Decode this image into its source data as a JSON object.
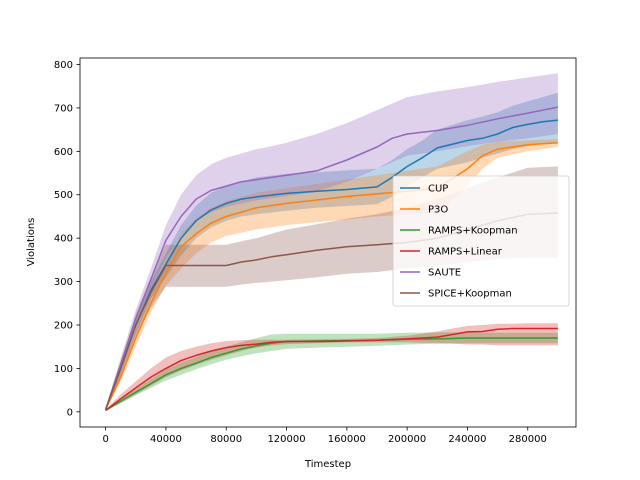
{
  "chart_data": {
    "type": "line",
    "title": "",
    "xlabel": "Timestep",
    "ylabel": "Violations",
    "xlim": [
      -17000,
      312000
    ],
    "ylim": [
      -35,
      815
    ],
    "xticks": [
      0,
      40000,
      80000,
      120000,
      160000,
      200000,
      240000,
      280000
    ],
    "xtick_labels": [
      "0",
      "40000",
      "80000",
      "120000",
      "160000",
      "200000",
      "240000",
      "280000"
    ],
    "yticks": [
      0,
      100,
      200,
      300,
      400,
      500,
      600,
      700,
      800
    ],
    "ytick_labels": [
      "0",
      "100",
      "200",
      "300",
      "400",
      "500",
      "600",
      "700",
      "800"
    ],
    "grid": false,
    "legend": "center-right",
    "series": [
      {
        "name": "CUP",
        "color": "#1f77b4",
        "x": [
          0,
          10000,
          20000,
          30000,
          40000,
          50000,
          60000,
          70000,
          80000,
          90000,
          100000,
          120000,
          140000,
          160000,
          180000,
          190000,
          200000,
          210000,
          220000,
          240000,
          250000,
          260000,
          270000,
          280000,
          290000,
          300000
        ],
        "y": [
          5,
          100,
          200,
          280,
          340,
          400,
          440,
          465,
          480,
          490,
          495,
          503,
          508,
          512,
          518,
          540,
          565,
          585,
          608,
          625,
          630,
          640,
          655,
          662,
          668,
          672
        ],
        "lower": [
          3,
          85,
          180,
          260,
          310,
          360,
          400,
          425,
          440,
          450,
          455,
          463,
          470,
          474,
          478,
          495,
          520,
          540,
          560,
          575,
          585,
          595,
          605,
          612,
          618,
          620
        ],
        "upper": [
          8,
          115,
          220,
          300,
          365,
          430,
          475,
          505,
          520,
          530,
          540,
          548,
          552,
          556,
          560,
          580,
          605,
          625,
          650,
          672,
          680,
          690,
          705,
          715,
          725,
          735
        ]
      },
      {
        "name": "P3O",
        "color": "#ff7f0e",
        "x": [
          0,
          10000,
          20000,
          30000,
          40000,
          50000,
          60000,
          70000,
          80000,
          100000,
          120000,
          140000,
          160000,
          180000,
          200000,
          220000,
          240000,
          250000,
          260000,
          280000,
          300000
        ],
        "y": [
          5,
          80,
          170,
          250,
          320,
          380,
          410,
          435,
          450,
          470,
          480,
          488,
          496,
          502,
          508,
          515,
          560,
          590,
          605,
          615,
          620
        ],
        "lower": [
          3,
          70,
          150,
          230,
          290,
          330,
          365,
          390,
          405,
          420,
          430,
          437,
          443,
          450,
          455,
          460,
          520,
          560,
          585,
          600,
          610
        ],
        "upper": [
          8,
          95,
          190,
          275,
          345,
          410,
          445,
          470,
          485,
          505,
          515,
          525,
          535,
          545,
          555,
          565,
          600,
          615,
          622,
          625,
          628
        ]
      },
      {
        "name": "RAMPS+Koopman",
        "color": "#2ca02c",
        "x": [
          0,
          10000,
          20000,
          30000,
          40000,
          50000,
          60000,
          70000,
          80000,
          90000,
          100000,
          110000,
          120000,
          140000,
          160000,
          180000,
          200000,
          220000,
          240000,
          260000,
          280000,
          300000
        ],
        "y": [
          3,
          25,
          45,
          65,
          85,
          100,
          112,
          125,
          135,
          145,
          152,
          158,
          162,
          163,
          164,
          165,
          167,
          168,
          170,
          170,
          170,
          170
        ],
        "lower": [
          2,
          20,
          38,
          55,
          72,
          85,
          98,
          110,
          120,
          128,
          135,
          140,
          145,
          148,
          150,
          152,
          155,
          157,
          158,
          158,
          158,
          158
        ],
        "upper": [
          5,
          30,
          52,
          75,
          98,
          113,
          126,
          140,
          150,
          160,
          170,
          178,
          180,
          180,
          180,
          180,
          182,
          183,
          183,
          182,
          182,
          182
        ]
      },
      {
        "name": "RAMPS+Linear",
        "color": "#d62728",
        "x": [
          0,
          10000,
          20000,
          30000,
          40000,
          50000,
          60000,
          70000,
          80000,
          90000,
          100000,
          110000,
          120000,
          140000,
          160000,
          180000,
          200000,
          220000,
          230000,
          240000,
          250000,
          260000,
          270000,
          280000,
          300000
        ],
        "y": [
          3,
          30,
          55,
          80,
          100,
          118,
          130,
          140,
          148,
          153,
          156,
          160,
          162,
          162,
          163,
          165,
          168,
          172,
          178,
          184,
          185,
          190,
          192,
          192,
          192
        ],
        "lower": [
          2,
          20,
          40,
          60,
          80,
          95,
          108,
          120,
          130,
          140,
          148,
          153,
          156,
          158,
          160,
          160,
          160,
          158,
          157,
          155,
          155,
          153,
          153,
          153,
          153
        ],
        "upper": [
          5,
          40,
          70,
          100,
          125,
          140,
          150,
          158,
          163,
          165,
          166,
          166,
          166,
          167,
          168,
          170,
          175,
          185,
          192,
          198,
          200,
          203,
          203,
          204,
          204
        ]
      },
      {
        "name": "SAUTE",
        "color": "#9467bd",
        "x": [
          0,
          10000,
          20000,
          30000,
          40000,
          50000,
          60000,
          70000,
          80000,
          90000,
          100000,
          110000,
          120000,
          140000,
          160000,
          180000,
          190000,
          200000,
          220000,
          240000,
          260000,
          280000,
          300000
        ],
        "y": [
          5,
          110,
          215,
          305,
          395,
          450,
          490,
          510,
          520,
          530,
          535,
          540,
          545,
          555,
          580,
          610,
          630,
          640,
          648,
          660,
          675,
          688,
          702
        ],
        "lower": [
          3,
          95,
          195,
          280,
          355,
          405,
          440,
          460,
          472,
          480,
          487,
          492,
          497,
          507,
          530,
          560,
          575,
          590,
          600,
          612,
          622,
          630,
          640
        ],
        "upper": [
          8,
          125,
          235,
          330,
          430,
          500,
          545,
          570,
          585,
          595,
          605,
          612,
          620,
          640,
          665,
          695,
          710,
          725,
          738,
          748,
          760,
          770,
          780
        ]
      },
      {
        "name": "SPICE+Koopman",
        "color": "#8c564b",
        "x": [
          0,
          10000,
          20000,
          30000,
          40000,
          50000,
          60000,
          70000,
          80000,
          90000,
          100000,
          110000,
          120000,
          140000,
          160000,
          180000,
          200000,
          220000,
          240000,
          260000,
          280000,
          300000
        ],
        "y": [
          5,
          100,
          200,
          275,
          337,
          337,
          337,
          337,
          337,
          345,
          350,
          357,
          362,
          372,
          380,
          385,
          390,
          400,
          420,
          440,
          455,
          458
        ],
        "lower": [
          3,
          85,
          175,
          240,
          288,
          288,
          288,
          288,
          288,
          293,
          297,
          300,
          303,
          310,
          318,
          322,
          330,
          335,
          345,
          352,
          355,
          355
        ],
        "upper": [
          8,
          115,
          225,
          310,
          385,
          385,
          385,
          385,
          385,
          393,
          400,
          410,
          420,
          432,
          445,
          455,
          470,
          490,
          515,
          540,
          562,
          565
        ]
      }
    ]
  }
}
